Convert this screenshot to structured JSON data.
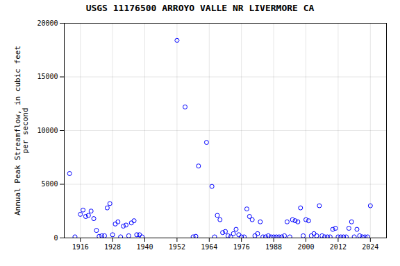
{
  "chart_data": {
    "type": "scatter",
    "title": "USGS 11176500 ARROYO VALLE NR LIVERMORE CA",
    "ylabel": "Annual Peak Streamflow, in cubic feet\nper second",
    "x": [
      1912,
      1914,
      1916,
      1917,
      1918,
      1919,
      1920,
      1921,
      1922,
      1923,
      1924,
      1925,
      1926,
      1927,
      1928,
      1929,
      1930,
      1931,
      1932,
      1933,
      1934,
      1935,
      1936,
      1937,
      1938,
      1939,
      1952,
      1955,
      1958,
      1959,
      1960,
      1963,
      1965,
      1966,
      1967,
      1968,
      1969,
      1970,
      1971,
      1972,
      1973,
      1974,
      1975,
      1976,
      1977,
      1978,
      1979,
      1980,
      1981,
      1982,
      1983,
      1984,
      1985,
      1986,
      1987,
      1988,
      1989,
      1990,
      1991,
      1992,
      1993,
      1994,
      1995,
      1996,
      1997,
      1998,
      1999,
      2000,
      2001,
      2002,
      2003,
      2004,
      2005,
      2006,
      2007,
      2008,
      2009,
      2010,
      2011,
      2012,
      2013,
      2014,
      2015,
      2016,
      2017,
      2018,
      2019,
      2020,
      2021,
      2022,
      2023,
      2024
    ],
    "values": [
      6000,
      100,
      2200,
      2600,
      2000,
      2100,
      2500,
      1800,
      700,
      150,
      200,
      200,
      2800,
      3200,
      300,
      1300,
      1500,
      100,
      1100,
      1200,
      200,
      1400,
      1600,
      300,
      300,
      100,
      18400,
      12200,
      100,
      150,
      6700,
      8900,
      4800,
      100,
      2100,
      1700,
      500,
      600,
      200,
      100,
      400,
      800,
      300,
      100,
      100,
      2700,
      2000,
      1700,
      200,
      400,
      1500,
      100,
      100,
      200,
      100,
      100,
      100,
      100,
      100,
      200,
      1500,
      100,
      1700,
      1600,
      1500,
      2800,
      200,
      1700,
      1600,
      200,
      400,
      200,
      3000,
      200,
      100,
      100,
      100,
      800,
      900,
      100,
      100,
      100,
      100,
      900,
      1500,
      100,
      800,
      200,
      100,
      100,
      100,
      3000
    ],
    "xlim": [
      1910,
      2030
    ],
    "ylim": [
      0,
      20000
    ],
    "xticks": [
      1916,
      1928,
      1940,
      1952,
      1964,
      1976,
      1988,
      2000,
      2012,
      2024
    ],
    "yticks": [
      0,
      5000,
      10000,
      15000,
      20000
    ],
    "color": "blue",
    "marker": "circle",
    "grid": true
  }
}
